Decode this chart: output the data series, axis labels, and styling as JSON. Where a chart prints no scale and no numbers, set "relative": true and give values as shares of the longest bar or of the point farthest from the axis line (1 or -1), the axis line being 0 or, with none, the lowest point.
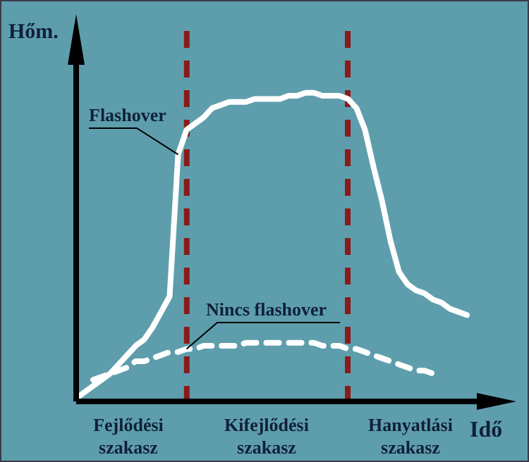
{
  "chart_data": {
    "type": "line",
    "relative": true,
    "xlabel": "Idő",
    "ylabel": "Hőm.",
    "categories": [
      null,
      null,
      null,
      null,
      null,
      null,
      null,
      null,
      null,
      null,
      null,
      null,
      null,
      null,
      null,
      null,
      null,
      null,
      null,
      null,
      null,
      null,
      null,
      null,
      null,
      null,
      null,
      null,
      null,
      null,
      null,
      null,
      null,
      null,
      null,
      null,
      null,
      null,
      null,
      null,
      null,
      null,
      null,
      null,
      null,
      null,
      null
    ],
    "tick_labels": false,
    "grid": false,
    "legend": false,
    "marker": "none",
    "series": [
      {
        "name": "Flashover",
        "color": "#ffffff",
        "line_style": "solid",
        "values": [
          0.01,
          0.03,
          0.05,
          0.07,
          0.09,
          0.12,
          0.15,
          0.18,
          0.2,
          0.24,
          0.29,
          0.34,
          0.8,
          0.88,
          0.9,
          0.92,
          0.95,
          0.96,
          0.97,
          0.97,
          0.97,
          0.98,
          0.98,
          0.98,
          0.98,
          0.99,
          0.99,
          1,
          1,
          0.99,
          0.99,
          0.99,
          0.98,
          0.95,
          0.88,
          0.76,
          0.65,
          0.52,
          0.42,
          0.38,
          0.36,
          0.35,
          0.33,
          0.32,
          0.3,
          0.29,
          0.28
        ]
      },
      {
        "name": "Nincs flashover",
        "color": "#ffffff",
        "line_style": "dashed",
        "values": [
          null,
          null,
          0.07,
          0.08,
          0.09,
          0.1,
          0.11,
          0.13,
          0.13,
          0.14,
          0.15,
          0.16,
          0.16,
          0.17,
          0.17,
          0.18,
          0.18,
          0.18,
          0.18,
          0.18,
          0.19,
          0.19,
          0.19,
          0.19,
          0.19,
          0.19,
          0.19,
          0.19,
          0.19,
          0.18,
          0.18,
          0.18,
          0.17,
          0.17,
          0.16,
          0.15,
          0.14,
          0.13,
          0.12,
          0.11,
          0.1,
          0.1,
          0.09,
          null,
          null,
          null,
          null
        ]
      }
    ],
    "annotations": [
      "Fejlődési\nszakasz",
      "Kifejlődési\nszakasz",
      "Hanyatlási\nszakasz"
    ]
  }
}
